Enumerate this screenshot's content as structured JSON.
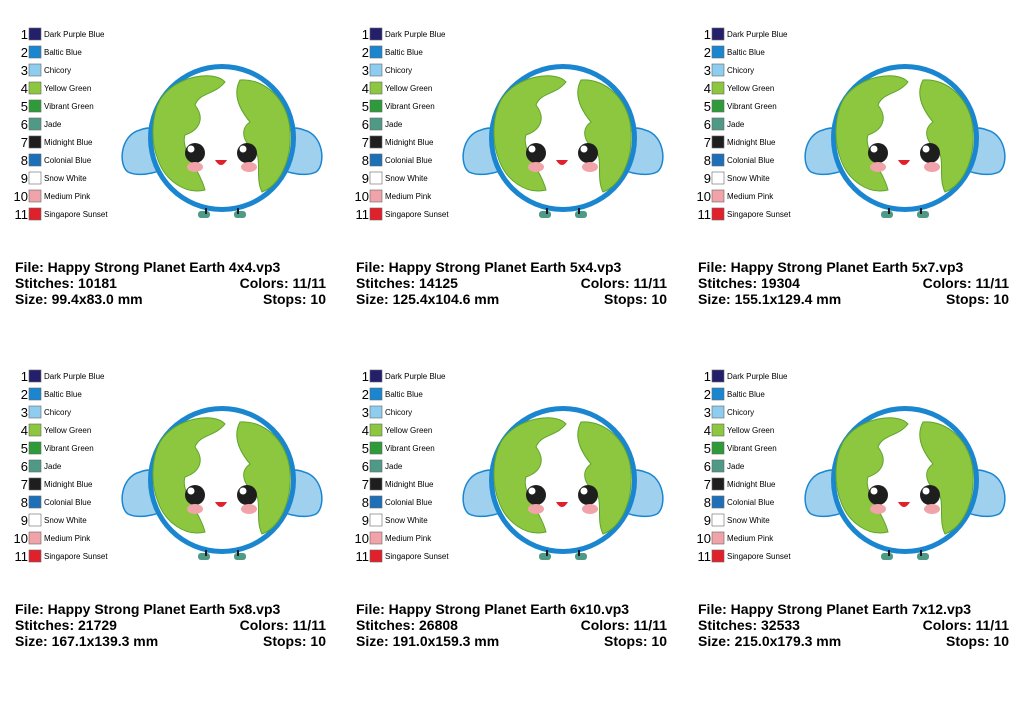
{
  "palette": [
    {
      "number": "1",
      "name": "Dark Purple Blue",
      "color": "#241f6b"
    },
    {
      "number": "2",
      "name": "Baltic Blue",
      "color": "#1b86d0"
    },
    {
      "number": "3",
      "name": "Chicory",
      "color": "#8ecdf0"
    },
    {
      "number": "4",
      "name": "Yellow Green",
      "color": "#8dc63f"
    },
    {
      "number": "5",
      "name": "Vibrant Green",
      "color": "#2e9a3a"
    },
    {
      "number": "6",
      "name": "Jade",
      "color": "#4f9a86"
    },
    {
      "number": "7",
      "name": "Midnight Blue",
      "color": "#1e1e1e"
    },
    {
      "number": "8",
      "name": "Colonial Blue",
      "color": "#1d6fb8"
    },
    {
      "number": "9",
      "name": "Snow White",
      "color": "#ffffff"
    },
    {
      "number": "10",
      "name": "Medium Pink",
      "color": "#f0a3a8"
    },
    {
      "number": "11",
      "name": "Singapore Sunset",
      "color": "#e0202a"
    }
  ],
  "designs": [
    {
      "file": "File: Happy Strong Planet Earth 4x4.vp3",
      "stitches": "Stitches: 10181",
      "colors": "Colors: 11/11",
      "size": "Size: 99.4x83.0 mm",
      "stops": "Stops: 10"
    },
    {
      "file": "File: Happy Strong Planet Earth 5x4.vp3",
      "stitches": "Stitches: 14125",
      "colors": "Colors: 11/11",
      "size": "Size: 125.4x104.6 mm",
      "stops": "Stops: 10"
    },
    {
      "file": "File: Happy Strong Planet Earth 5x7.vp3",
      "stitches": "Stitches: 19304",
      "colors": "Colors: 11/11",
      "size": "Size: 155.1x129.4 mm",
      "stops": "Stops: 10"
    },
    {
      "file": "File: Happy Strong Planet Earth 5x8.vp3",
      "stitches": "Stitches: 21729",
      "colors": "Colors: 11/11",
      "size": "Size: 167.1x139.3 mm",
      "stops": "Stops: 10"
    },
    {
      "file": "File: Happy Strong Planet Earth 6x10.vp3",
      "stitches": "Stitches: 26808",
      "colors": "Colors: 11/11",
      "size": "Size: 191.0x159.3 mm",
      "stops": "Stops: 10"
    },
    {
      "file": "File: Happy Strong Planet Earth 7x12.vp3",
      "stitches": "Stitches: 32533",
      "colors": "Colors: 11/11",
      "size": "Size: 215.0x179.3 mm",
      "stops": "Stops: 10"
    }
  ]
}
